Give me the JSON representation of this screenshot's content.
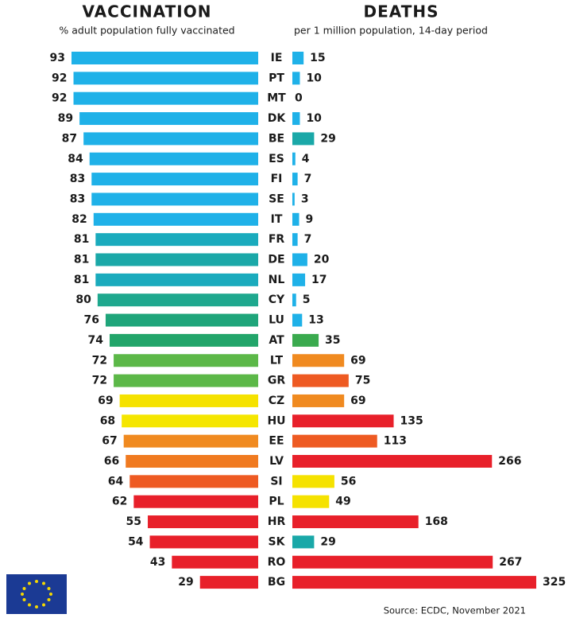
{
  "chart_data": [
    {
      "type": "bar",
      "title": "VACCINATION",
      "subtitle": "% adult population fully vaccinated",
      "categories": [
        "IE",
        "PT",
        "MT",
        "DK",
        "BE",
        "ES",
        "FI",
        "SE",
        "IT",
        "FR",
        "DE",
        "NL",
        "CY",
        "LU",
        "AT",
        "LT",
        "GR",
        "CZ",
        "HU",
        "EE",
        "LV",
        "SI",
        "PL",
        "HR",
        "SK",
        "RO",
        "BG"
      ],
      "values": [
        93,
        92,
        92,
        89,
        87,
        84,
        83,
        83,
        82,
        81,
        81,
        81,
        80,
        76,
        74,
        72,
        72,
        69,
        68,
        67,
        66,
        64,
        62,
        55,
        54,
        43,
        29
      ],
      "colors": [
        "#1fb1e8",
        "#1fb1e8",
        "#1fb1e8",
        "#1fb1e8",
        "#1fb1e8",
        "#1fb1e8",
        "#1fb1e8",
        "#1fb1e8",
        "#1fb1e8",
        "#1aabbd",
        "#1aa8a8",
        "#1aabbd",
        "#1ea88e",
        "#1fa57a",
        "#22a56a",
        "#5cb848",
        "#5cb848",
        "#f5e200",
        "#f5e600",
        "#f08a20",
        "#f07a20",
        "#ee5a22",
        "#e8202a",
        "#e8202a",
        "#e8202a",
        "#e8202a",
        "#e8202a"
      ]
    },
    {
      "type": "bar",
      "title": "DEATHS",
      "subtitle": "per 1 million population, 14-day period",
      "values": [
        15,
        10,
        0,
        10,
        29,
        4,
        7,
        3,
        9,
        7,
        20,
        17,
        5,
        13,
        35,
        69,
        75,
        69,
        135,
        113,
        266,
        56,
        49,
        168,
        29,
        267,
        325
      ],
      "colors": [
        "#1fb1e8",
        "#1fb1e8",
        "#1fb1e8",
        "#1fb1e8",
        "#1aa8a8",
        "#1fb1e8",
        "#1fb1e8",
        "#1fb1e8",
        "#1fb1e8",
        "#1fb1e8",
        "#1fb1e8",
        "#1fb1e8",
        "#1fb1e8",
        "#1fb1e8",
        "#3aaa4e",
        "#f08a20",
        "#ee5a22",
        "#f08a20",
        "#e8202a",
        "#ee5a22",
        "#e8202a",
        "#f5e200",
        "#f5e200",
        "#e8202a",
        "#1aa8a8",
        "#e8202a",
        "#e8202a"
      ]
    }
  ],
  "source": "Source: ECDC, November 2021"
}
